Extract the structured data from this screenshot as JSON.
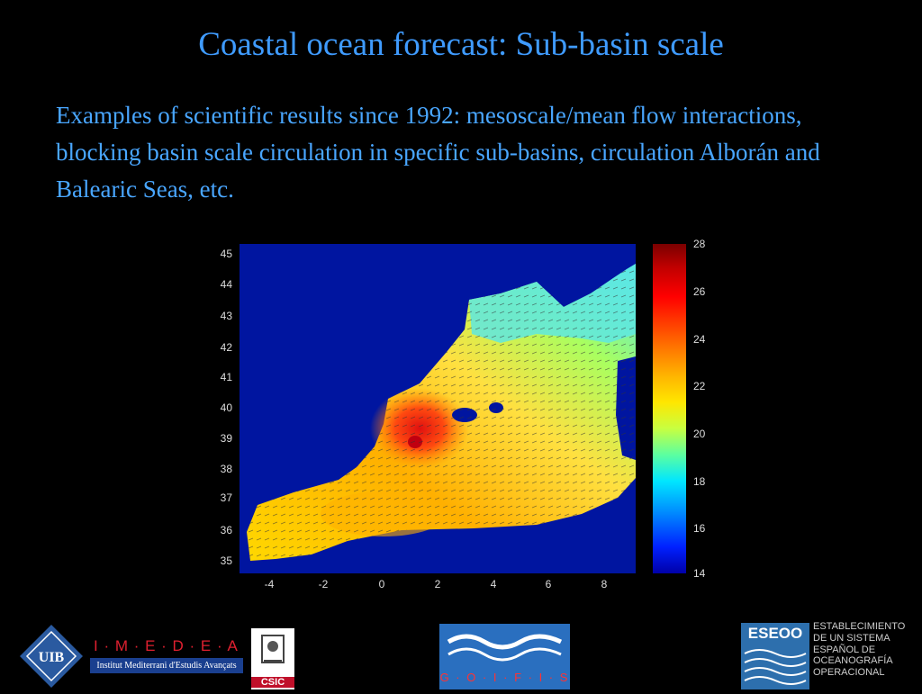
{
  "slide": {
    "title": "Coastal ocean forecast: Sub-basin scale",
    "body": "Examples of scientific results since 1992: mesoscale/mean flow interactions, blocking basin scale circulation in specific sub-basins, circulation Alborán and Balearic Seas, etc."
  },
  "figure": {
    "y_ticks": [
      "45",
      "44",
      "43",
      "42",
      "41",
      "40",
      "39",
      "38",
      "37",
      "36",
      "35"
    ],
    "x_ticks": [
      "-4",
      "-2",
      "0",
      "2",
      "4",
      "6",
      "8"
    ],
    "colorbar_ticks": [
      "28",
      "26",
      "24",
      "22",
      "20",
      "18",
      "16",
      "14"
    ],
    "colors": {
      "land": "#0015a0",
      "warm": "#ff3000",
      "cool": "#4fd8ff"
    }
  },
  "logos": {
    "uib": "UIB",
    "imedea": "I · M · E · D · E · A",
    "imedea_sub": "Institut Mediterrani d'Estudis Avançats",
    "csic": "CSIC",
    "goifis": "G · O · I · F · I · S",
    "eseoo": "ESEOO",
    "eseoo_lines": [
      "ESTABLECIMIENTO",
      "DE UN SISTEMA",
      "ESPAÑOL DE",
      "OCEANOGRAFÍA",
      "OPERACIONAL"
    ]
  }
}
